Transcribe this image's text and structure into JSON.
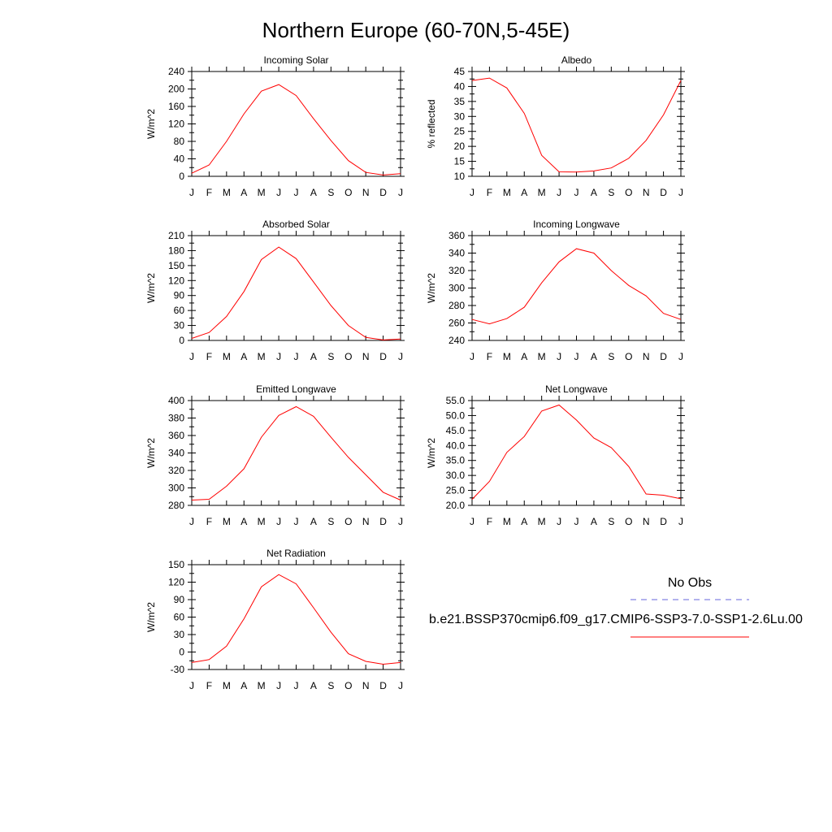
{
  "page_title": "Northern Europe (60-70N,5-45E)",
  "months": [
    "J",
    "F",
    "M",
    "A",
    "M",
    "J",
    "J",
    "A",
    "S",
    "O",
    "N",
    "D",
    "J"
  ],
  "chart_data": [
    {
      "type": "line",
      "title": "Incoming Solar",
      "ylabel": "W/m^2",
      "ylim": [
        0,
        240
      ],
      "yticks": [
        "0",
        "40",
        "80",
        "120",
        "160",
        "200",
        "240"
      ],
      "series": [
        {
          "values": [
            7,
            26,
            80,
            143,
            195,
            210,
            185,
            132,
            82,
            36,
            9,
            3,
            6
          ]
        }
      ]
    },
    {
      "type": "line",
      "title": "Albedo",
      "ylabel": "% reflected",
      "ylim": [
        10,
        45
      ],
      "yticks": [
        "10",
        "15",
        "20",
        "25",
        "30",
        "35",
        "40",
        "45"
      ],
      "series": [
        {
          "values": [
            42,
            42.8,
            39.5,
            31,
            17,
            11.5,
            11.4,
            11.8,
            12.8,
            16,
            22,
            30.5,
            42
          ]
        }
      ]
    },
    {
      "type": "line",
      "title": "Absorbed Solar",
      "ylabel": "W/m^2",
      "ylim": [
        0,
        210
      ],
      "yticks": [
        "0",
        "30",
        "60",
        "90",
        "120",
        "150",
        "180",
        "210"
      ],
      "series": [
        {
          "values": [
            4,
            16,
            48,
            98,
            162,
            187,
            164,
            117,
            70,
            30,
            6,
            1,
            3
          ]
        }
      ]
    },
    {
      "type": "line",
      "title": "Incoming Longwave",
      "ylabel": "W/m^2",
      "ylim": [
        240,
        360
      ],
      "yticks": [
        "240",
        "260",
        "280",
        "300",
        "320",
        "340",
        "360"
      ],
      "series": [
        {
          "values": [
            264,
            259,
            265,
            278,
            306,
            330,
            345,
            340,
            320,
            303,
            291,
            271,
            264
          ]
        }
      ]
    },
    {
      "type": "line",
      "title": "Emitted Longwave",
      "ylabel": "W/m^2",
      "ylim": [
        280,
        400
      ],
      "yticks": [
        "280",
        "300",
        "320",
        "340",
        "360",
        "380",
        "400"
      ],
      "series": [
        {
          "values": [
            286,
            287,
            302,
            322,
            358,
            383,
            393,
            382,
            358,
            335,
            315,
            295,
            286
          ]
        }
      ]
    },
    {
      "type": "line",
      "title": "Net Longwave",
      "ylabel": "W/m^2",
      "ylim": [
        20,
        55
      ],
      "yticks": [
        "20.0",
        "25.0",
        "30.0",
        "35.0",
        "40.0",
        "45.0",
        "50.0",
        "55.0"
      ],
      "series": [
        {
          "values": [
            22,
            28,
            37.7,
            43,
            51.5,
            53.5,
            48.5,
            42.5,
            39.3,
            33,
            23.8,
            23.4,
            22.2
          ]
        }
      ]
    },
    {
      "type": "line",
      "title": "Net Radiation",
      "ylabel": "W/m^2",
      "ylim": [
        -30,
        150
      ],
      "yticks": [
        "-30",
        "0",
        "30",
        "60",
        "90",
        "120",
        "150"
      ],
      "series": [
        {
          "values": [
            -18,
            -13,
            10,
            57,
            112,
            133,
            117,
            76,
            34,
            -3,
            -16,
            -21,
            -18
          ]
        }
      ]
    }
  ],
  "legend": {
    "obs_label": "No Obs",
    "obs_color": "#6666dd",
    "model_label": "b.e21.BSSP370cmip6.f09_g17.CMIP6-SSP3-7.0-SSP1-2.6Lu.00",
    "model_color": "#ff0000"
  },
  "colors": {
    "line": "#ff0000",
    "axis": "#000000"
  }
}
